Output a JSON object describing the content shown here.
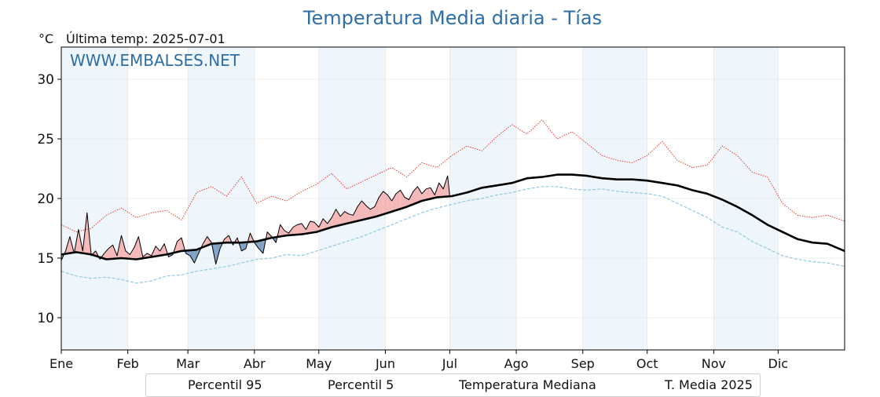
{
  "chart_data": {
    "type": "line",
    "title": "Temperatura Media diaria - Tías",
    "unit_label": "°C",
    "last_temp_label": "Última temp: 2025-07-01",
    "watermark": "WWW.EMBALSES.NET",
    "ylim": [
      7.3,
      32.7
    ],
    "xlim": [
      1,
      366
    ],
    "yticks": [
      10,
      15,
      20,
      25,
      30
    ],
    "ytick_labels": [
      "10",
      "15",
      "20",
      "25",
      "30"
    ],
    "month_labels": [
      "Ene",
      "Feb",
      "Mar",
      "Abr",
      "May",
      "Jun",
      "Jul",
      "Ago",
      "Sep",
      "Oct",
      "Nov",
      "Dic"
    ],
    "month_start_days": [
      1,
      32,
      60,
      91,
      121,
      152,
      182,
      213,
      244,
      274,
      305,
      335
    ],
    "grid": true,
    "legend_position": "bottom",
    "legend": [
      "Percentil 95",
      "Percentil 5",
      "Temperatura Mediana",
      "T. Media 2025"
    ],
    "colors": {
      "p95": "#e8281e",
      "p5": "#8fcbe0",
      "median": "#000000",
      "current": "#000000",
      "above_fill": "#f4b8b8",
      "below_fill": "#7ea3c6",
      "shade": "#eef5fb",
      "title": "#2e6ea6"
    },
    "series": [
      {
        "name": "Percentil 95",
        "style": "dotted-red",
        "x": [
          1,
          8,
          15,
          22,
          29,
          36,
          43,
          50,
          57,
          64,
          71,
          78,
          85,
          92,
          99,
          106,
          113,
          120,
          127,
          134,
          141,
          148,
          155,
          162,
          169,
          176,
          183,
          190,
          197,
          204,
          211,
          218,
          225,
          232,
          239,
          246,
          253,
          260,
          267,
          274,
          281,
          288,
          295,
          302,
          309,
          316,
          323,
          330,
          337,
          344,
          351,
          358,
          366
        ],
        "values": [
          17.8,
          17.2,
          17.5,
          18.6,
          19.2,
          18.4,
          18.8,
          19.0,
          18.2,
          20.5,
          21.0,
          20.2,
          21.8,
          19.6,
          20.2,
          19.8,
          20.6,
          21.2,
          22.1,
          20.8,
          21.4,
          22.0,
          22.6,
          21.8,
          23.0,
          22.6,
          23.6,
          24.4,
          24.0,
          25.2,
          26.2,
          25.4,
          26.6,
          25.0,
          25.6,
          24.6,
          23.6,
          23.2,
          23.0,
          23.6,
          24.8,
          23.2,
          22.6,
          22.8,
          24.4,
          23.6,
          22.2,
          21.8,
          19.6,
          18.6,
          18.4,
          18.6,
          18.1
        ]
      },
      {
        "name": "Percentil 5",
        "style": "dashed-lightblue",
        "x": [
          1,
          8,
          15,
          22,
          29,
          36,
          43,
          50,
          57,
          64,
          71,
          78,
          85,
          92,
          99,
          106,
          113,
          120,
          127,
          134,
          141,
          148,
          155,
          162,
          169,
          176,
          183,
          190,
          197,
          204,
          211,
          218,
          225,
          232,
          239,
          246,
          253,
          260,
          267,
          274,
          281,
          288,
          295,
          302,
          309,
          316,
          323,
          330,
          337,
          344,
          351,
          358,
          366
        ],
        "values": [
          13.9,
          13.5,
          13.3,
          13.4,
          13.2,
          12.9,
          13.1,
          13.5,
          13.6,
          13.9,
          14.1,
          14.3,
          14.6,
          14.9,
          15.0,
          15.3,
          15.2,
          15.6,
          16.0,
          16.4,
          16.8,
          17.3,
          17.8,
          18.3,
          18.8,
          19.2,
          19.5,
          19.8,
          20.0,
          20.3,
          20.5,
          20.8,
          21.0,
          21.0,
          20.8,
          20.7,
          20.8,
          20.6,
          20.5,
          20.4,
          20.2,
          19.6,
          19.0,
          18.4,
          17.6,
          17.2,
          16.4,
          15.8,
          15.2,
          14.9,
          14.7,
          14.6,
          14.3
        ]
      },
      {
        "name": "Temperatura Mediana",
        "style": "thick-black",
        "x": [
          1,
          8,
          15,
          22,
          29,
          36,
          43,
          50,
          57,
          64,
          71,
          78,
          85,
          92,
          99,
          106,
          113,
          120,
          127,
          134,
          141,
          148,
          155,
          162,
          169,
          176,
          183,
          190,
          197,
          204,
          211,
          218,
          225,
          232,
          239,
          246,
          253,
          260,
          267,
          274,
          281,
          288,
          295,
          302,
          309,
          316,
          323,
          330,
          337,
          344,
          351,
          358,
          366
        ],
        "values": [
          15.3,
          15.5,
          15.3,
          14.9,
          15.0,
          14.9,
          15.1,
          15.3,
          15.6,
          15.7,
          16.2,
          16.3,
          16.3,
          16.4,
          16.7,
          16.9,
          17.0,
          17.2,
          17.6,
          17.9,
          18.2,
          18.5,
          18.9,
          19.3,
          19.8,
          20.1,
          20.2,
          20.5,
          20.9,
          21.1,
          21.3,
          21.7,
          21.8,
          22.0,
          22.0,
          21.9,
          21.7,
          21.6,
          21.6,
          21.5,
          21.3,
          21.1,
          20.7,
          20.4,
          19.9,
          19.3,
          18.6,
          17.8,
          17.2,
          16.6,
          16.3,
          16.2,
          15.6
        ]
      },
      {
        "name": "T. Media 2025",
        "style": "thin-black",
        "x": [
          1,
          3,
          5,
          7,
          9,
          11,
          13,
          15,
          17,
          19,
          21,
          23,
          25,
          27,
          29,
          31,
          33,
          35,
          37,
          39,
          41,
          43,
          45,
          47,
          49,
          51,
          53,
          55,
          57,
          59,
          61,
          63,
          65,
          67,
          69,
          71,
          73,
          75,
          77,
          79,
          81,
          83,
          85,
          87,
          89,
          91,
          93,
          95,
          97,
          99,
          101,
          103,
          105,
          107,
          109,
          111,
          113,
          115,
          117,
          119,
          121,
          123,
          125,
          127,
          129,
          131,
          133,
          135,
          137,
          139,
          141,
          143,
          145,
          147,
          149,
          151,
          153,
          155,
          157,
          159,
          161,
          163,
          165,
          167,
          169,
          171,
          173,
          175,
          177,
          179,
          181,
          182
        ],
        "values": [
          14.8,
          15.6,
          16.8,
          15.4,
          17.4,
          15.6,
          18.8,
          15.2,
          15.6,
          14.9,
          15.4,
          15.8,
          16.1,
          15.2,
          16.9,
          15.6,
          15.3,
          15.9,
          16.8,
          15.1,
          15.4,
          15.2,
          16.0,
          15.6,
          16.2,
          15.1,
          15.3,
          16.4,
          16.7,
          15.4,
          15.2,
          14.6,
          15.4,
          16.2,
          16.8,
          16.3,
          14.5,
          15.8,
          16.6,
          16.9,
          16.1,
          16.7,
          15.6,
          15.8,
          17.1,
          16.3,
          15.8,
          15.4,
          17.2,
          16.8,
          16.3,
          17.8,
          17.3,
          17.1,
          17.6,
          17.8,
          17.9,
          17.4,
          18.1,
          18.0,
          17.6,
          18.3,
          17.9,
          18.4,
          19.1,
          18.5,
          18.9,
          18.7,
          18.6,
          19.3,
          19.8,
          19.4,
          19.1,
          19.3,
          20.1,
          20.6,
          20.3,
          19.8,
          20.4,
          20.7,
          20.1,
          19.9,
          20.6,
          21.0,
          20.4,
          20.8,
          20.9,
          20.3,
          21.3,
          20.8,
          21.9,
          20.2
        ]
      }
    ]
  }
}
